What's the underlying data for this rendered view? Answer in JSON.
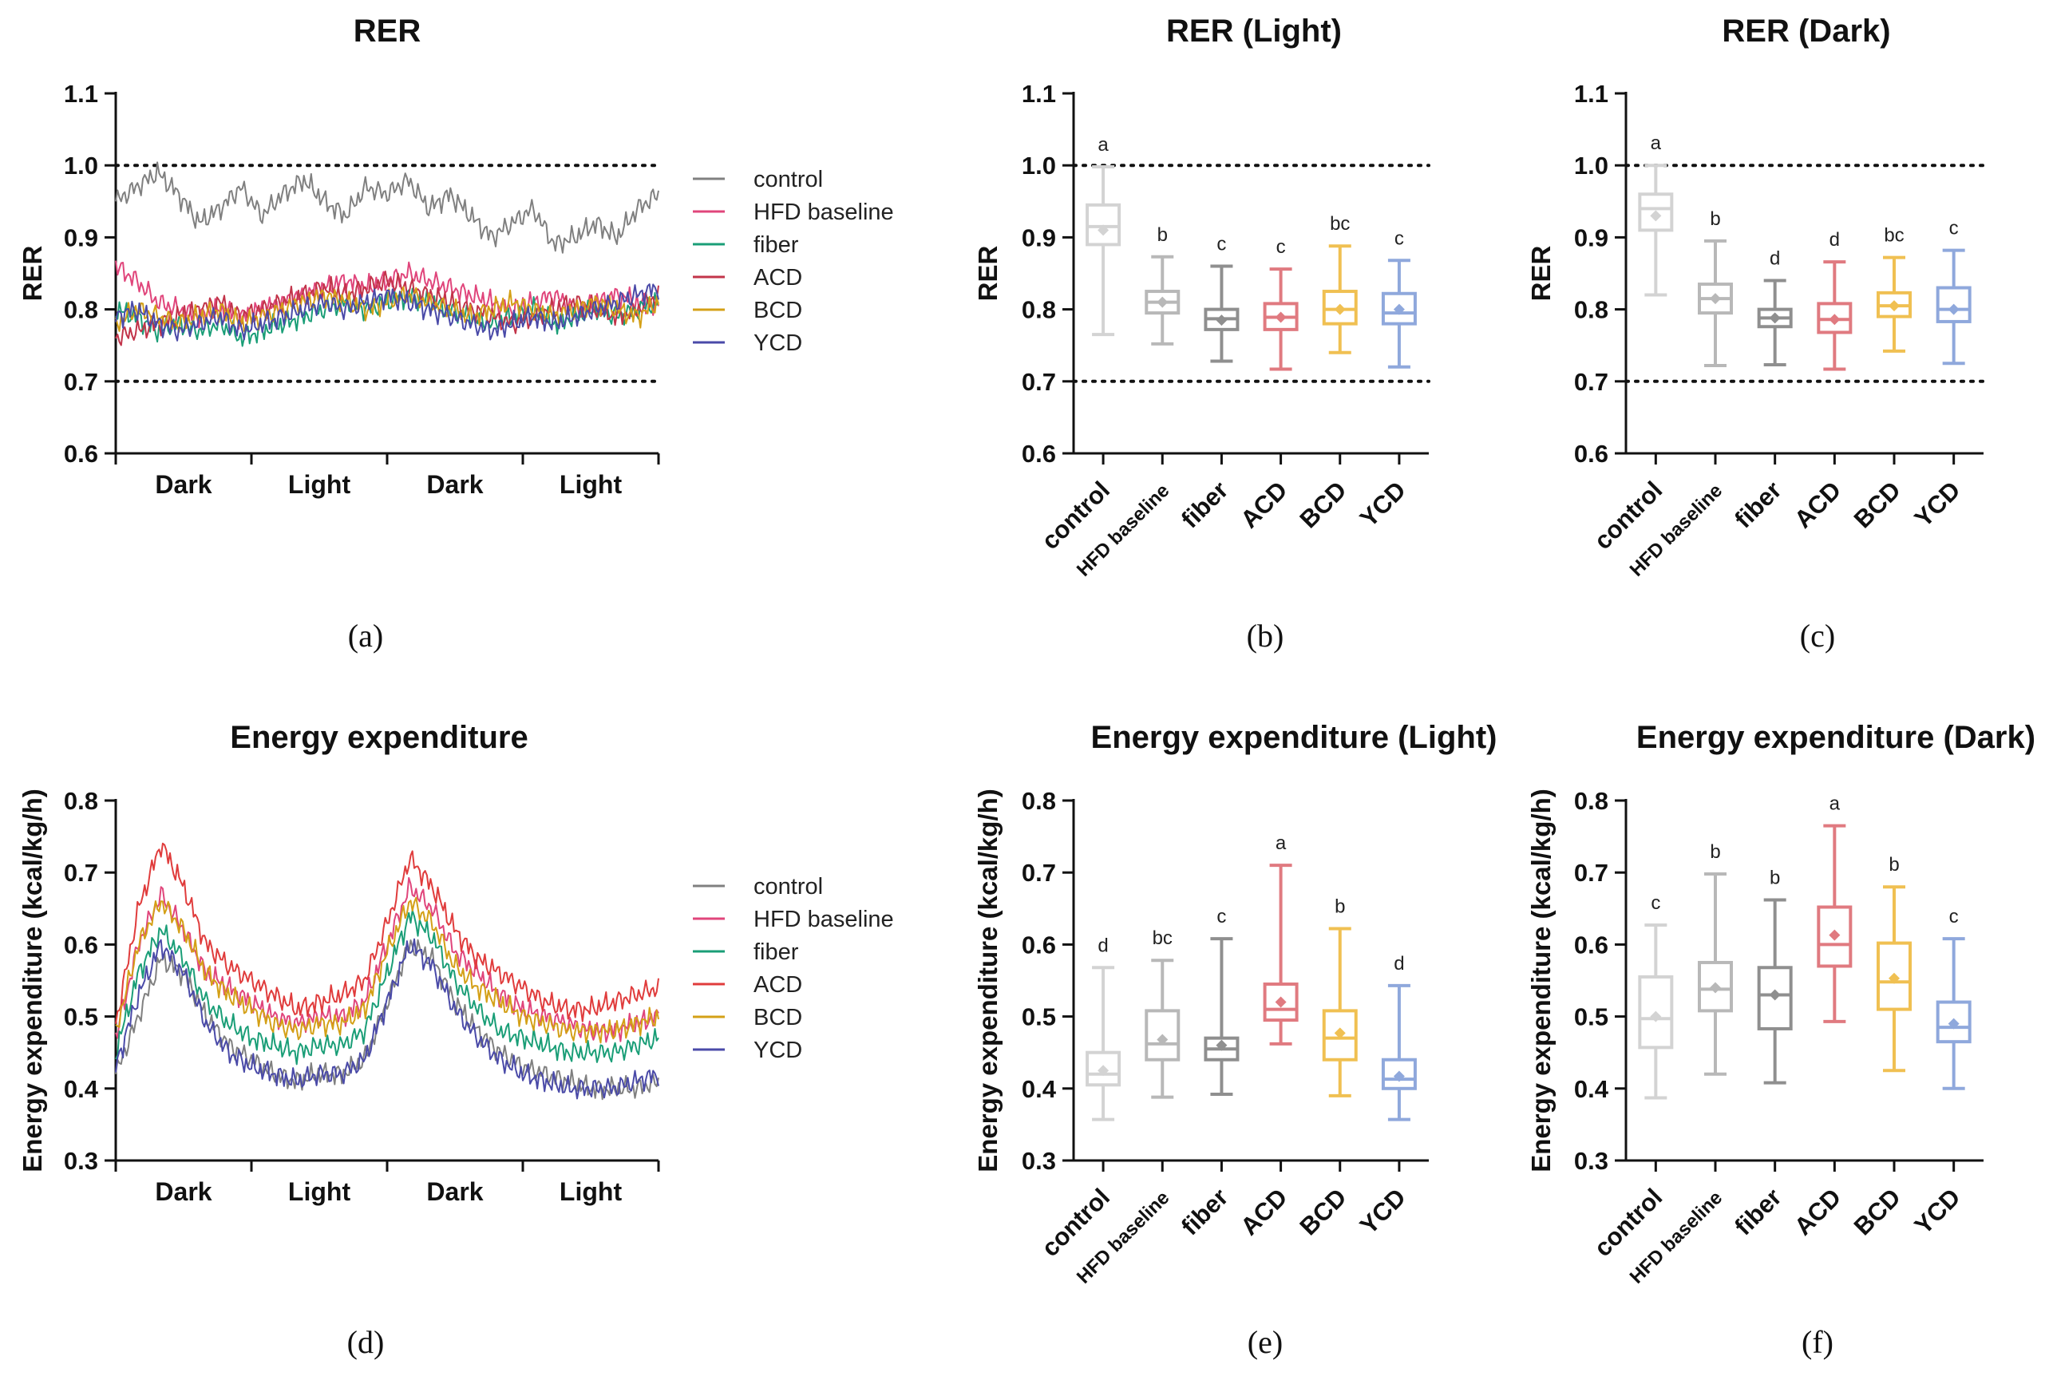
{
  "chart_data": [
    {
      "id": "a",
      "panel_label": "(a)",
      "type": "line",
      "title": "RER",
      "ylabel": "RER",
      "ylim": [
        0.6,
        1.1
      ],
      "yticks": [
        "0.6",
        "0.7",
        "0.8",
        "0.9",
        "1.0",
        "1.1"
      ],
      "xcategories": [
        "Dark",
        "Light",
        "Dark",
        "Light"
      ],
      "reference_lines": [
        0.7,
        1.0
      ],
      "legend_position": "right",
      "series": [
        {
          "name": "control",
          "color": "#808080",
          "base": [
            0.95,
            0.97,
            0.99,
            0.96,
            0.92,
            0.94,
            0.97,
            0.93,
            0.96,
            0.98,
            0.95,
            0.93,
            0.97,
            0.96,
            0.98,
            0.94,
            0.96,
            0.93,
            0.9,
            0.92,
            0.94,
            0.89,
            0.9,
            0.92,
            0.9,
            0.94,
            0.96
          ]
        },
        {
          "name": "HFD baseline",
          "color": "#e0457b",
          "base": [
            0.86,
            0.84,
            0.81,
            0.8,
            0.79,
            0.8,
            0.79,
            0.8,
            0.81,
            0.82,
            0.83,
            0.84,
            0.83,
            0.84,
            0.85,
            0.84,
            0.83,
            0.82,
            0.81,
            0.8,
            0.81,
            0.82,
            0.8,
            0.81,
            0.82,
            0.81,
            0.8
          ]
        },
        {
          "name": "fiber",
          "color": "#1a9e77",
          "base": [
            0.8,
            0.79,
            0.77,
            0.78,
            0.77,
            0.78,
            0.76,
            0.77,
            0.78,
            0.79,
            0.8,
            0.81,
            0.8,
            0.81,
            0.82,
            0.81,
            0.8,
            0.79,
            0.78,
            0.79,
            0.8,
            0.78,
            0.79,
            0.8,
            0.79,
            0.8,
            0.81
          ]
        },
        {
          "name": "ACD",
          "color": "#c2344a",
          "base": [
            0.76,
            0.77,
            0.78,
            0.79,
            0.8,
            0.81,
            0.79,
            0.8,
            0.81,
            0.82,
            0.83,
            0.82,
            0.83,
            0.84,
            0.83,
            0.82,
            0.81,
            0.8,
            0.79,
            0.78,
            0.79,
            0.8,
            0.81,
            0.8,
            0.79,
            0.8,
            0.82
          ]
        },
        {
          "name": "BCD",
          "color": "#d4a017",
          "base": [
            0.78,
            0.8,
            0.79,
            0.78,
            0.79,
            0.8,
            0.78,
            0.79,
            0.8,
            0.81,
            0.82,
            0.81,
            0.8,
            0.81,
            0.82,
            0.81,
            0.8,
            0.79,
            0.8,
            0.81,
            0.8,
            0.79,
            0.8,
            0.81,
            0.8,
            0.79,
            0.81
          ]
        },
        {
          "name": "YCD",
          "color": "#4a4aa8",
          "base": [
            0.79,
            0.8,
            0.78,
            0.77,
            0.78,
            0.79,
            0.77,
            0.78,
            0.79,
            0.8,
            0.81,
            0.8,
            0.81,
            0.82,
            0.81,
            0.8,
            0.79,
            0.78,
            0.77,
            0.78,
            0.79,
            0.78,
            0.79,
            0.8,
            0.81,
            0.82,
            0.83
          ]
        }
      ]
    },
    {
      "id": "b",
      "panel_label": "(b)",
      "type": "box",
      "title": "RER (Light)",
      "ylabel": "RER",
      "ylim": [
        0.6,
        1.1
      ],
      "yticks": [
        "0.6",
        "0.7",
        "0.8",
        "0.9",
        "1.0",
        "1.1"
      ],
      "reference_lines": [
        0.7,
        1.0
      ],
      "categories": [
        "control",
        "HFD baseline",
        "fiber",
        "ACD",
        "BCD",
        "YCD"
      ],
      "colors": [
        "#d3d3d3",
        "#b8b8b8",
        "#8f8f8f",
        "#e07a80",
        "#f0c052",
        "#8fa8dc"
      ],
      "boxes": [
        {
          "min": 0.765,
          "q1": 0.89,
          "median": 0.915,
          "q3": 0.945,
          "max": 0.998,
          "mean": 0.91,
          "letter": "a"
        },
        {
          "min": 0.752,
          "q1": 0.795,
          "median": 0.81,
          "q3": 0.825,
          "max": 0.873,
          "mean": 0.81,
          "letter": "b"
        },
        {
          "min": 0.728,
          "q1": 0.772,
          "median": 0.787,
          "q3": 0.8,
          "max": 0.86,
          "mean": 0.785,
          "letter": "c"
        },
        {
          "min": 0.717,
          "q1": 0.772,
          "median": 0.789,
          "q3": 0.808,
          "max": 0.856,
          "mean": 0.789,
          "letter": "c"
        },
        {
          "min": 0.74,
          "q1": 0.78,
          "median": 0.8,
          "q3": 0.825,
          "max": 0.888,
          "mean": 0.8,
          "letter": "bc"
        },
        {
          "min": 0.72,
          "q1": 0.78,
          "median": 0.795,
          "q3": 0.822,
          "max": 0.868,
          "mean": 0.8,
          "letter": "c"
        }
      ]
    },
    {
      "id": "c",
      "panel_label": "(c)",
      "type": "box",
      "title": "RER (Dark)",
      "ylabel": "RER",
      "ylim": [
        0.6,
        1.1
      ],
      "yticks": [
        "0.6",
        "0.7",
        "0.8",
        "0.9",
        "1.0",
        "1.1"
      ],
      "reference_lines": [
        0.7,
        1.0
      ],
      "categories": [
        "control",
        "HFD baseline",
        "fiber",
        "ACD",
        "BCD",
        "YCD"
      ],
      "colors": [
        "#d3d3d3",
        "#b8b8b8",
        "#8f8f8f",
        "#e07a80",
        "#f0c052",
        "#8fa8dc"
      ],
      "boxes": [
        {
          "min": 0.82,
          "q1": 0.91,
          "median": 0.94,
          "q3": 0.96,
          "max": 1.0,
          "mean": 0.93,
          "letter": "a"
        },
        {
          "min": 0.722,
          "q1": 0.795,
          "median": 0.815,
          "q3": 0.835,
          "max": 0.895,
          "mean": 0.815,
          "letter": "b"
        },
        {
          "min": 0.723,
          "q1": 0.776,
          "median": 0.788,
          "q3": 0.8,
          "max": 0.84,
          "mean": 0.788,
          "letter": "d"
        },
        {
          "min": 0.717,
          "q1": 0.768,
          "median": 0.786,
          "q3": 0.808,
          "max": 0.866,
          "mean": 0.786,
          "letter": "d"
        },
        {
          "min": 0.742,
          "q1": 0.79,
          "median": 0.805,
          "q3": 0.823,
          "max": 0.872,
          "mean": 0.805,
          "letter": "bc"
        },
        {
          "min": 0.725,
          "q1": 0.783,
          "median": 0.8,
          "q3": 0.83,
          "max": 0.882,
          "mean": 0.8,
          "letter": "c"
        }
      ]
    },
    {
      "id": "d",
      "panel_label": "(d)",
      "type": "line",
      "title": "Energy expenditure",
      "ylabel": "Energy expenditure (kcal/kg/h)",
      "ylim": [
        0.3,
        0.8
      ],
      "yticks": [
        "0.3",
        "0.4",
        "0.5",
        "0.6",
        "0.7",
        "0.8"
      ],
      "xcategories": [
        "Dark",
        "Light",
        "Dark",
        "Light"
      ],
      "reference_lines": [],
      "legend_position": "right",
      "series": [
        {
          "name": "control",
          "color": "#808080",
          "base": [
            0.42,
            0.5,
            0.58,
            0.56,
            0.5,
            0.46,
            0.44,
            0.42,
            0.41,
            0.42,
            0.42,
            0.44,
            0.52,
            0.6,
            0.58,
            0.52,
            0.48,
            0.45,
            0.43,
            0.42,
            0.41,
            0.4,
            0.4,
            0.4,
            0.41
          ]
        },
        {
          "name": "HFD baseline",
          "color": "#e0457b",
          "base": [
            0.47,
            0.6,
            0.67,
            0.62,
            0.56,
            0.54,
            0.52,
            0.5,
            0.49,
            0.5,
            0.5,
            0.52,
            0.6,
            0.68,
            0.65,
            0.59,
            0.56,
            0.53,
            0.51,
            0.5,
            0.49,
            0.48,
            0.48,
            0.49,
            0.5
          ]
        },
        {
          "name": "fiber",
          "color": "#1a9e77",
          "base": [
            0.45,
            0.56,
            0.62,
            0.58,
            0.52,
            0.49,
            0.47,
            0.46,
            0.45,
            0.46,
            0.46,
            0.48,
            0.56,
            0.64,
            0.61,
            0.55,
            0.51,
            0.48,
            0.47,
            0.46,
            0.45,
            0.45,
            0.45,
            0.46,
            0.47
          ]
        },
        {
          "name": "ACD",
          "color": "#e03c3c",
          "base": [
            0.49,
            0.65,
            0.74,
            0.68,
            0.6,
            0.57,
            0.55,
            0.53,
            0.51,
            0.52,
            0.53,
            0.55,
            0.63,
            0.72,
            0.68,
            0.62,
            0.58,
            0.56,
            0.54,
            0.52,
            0.51,
            0.51,
            0.52,
            0.53,
            0.54
          ]
        },
        {
          "name": "BCD",
          "color": "#d4a017",
          "base": [
            0.48,
            0.6,
            0.66,
            0.62,
            0.56,
            0.53,
            0.51,
            0.49,
            0.48,
            0.49,
            0.49,
            0.51,
            0.59,
            0.66,
            0.63,
            0.57,
            0.54,
            0.52,
            0.5,
            0.49,
            0.48,
            0.48,
            0.48,
            0.49,
            0.5
          ]
        },
        {
          "name": "YCD",
          "color": "#4a4aa8",
          "base": [
            0.43,
            0.53,
            0.6,
            0.56,
            0.49,
            0.45,
            0.43,
            0.42,
            0.41,
            0.42,
            0.42,
            0.44,
            0.52,
            0.6,
            0.57,
            0.51,
            0.47,
            0.44,
            0.42,
            0.41,
            0.4,
            0.4,
            0.4,
            0.41,
            0.42
          ]
        }
      ]
    },
    {
      "id": "e",
      "panel_label": "(e)",
      "type": "box",
      "title": "Energy expenditure (Light)",
      "ylabel": "Energy expenditure (kcal/kg/h)",
      "ylim": [
        0.3,
        0.8
      ],
      "yticks": [
        "0.3",
        "0.4",
        "0.5",
        "0.6",
        "0.7",
        "0.8"
      ],
      "reference_lines": [],
      "categories": [
        "control",
        "HFD baseline",
        "fiber",
        "ACD",
        "BCD",
        "YCD"
      ],
      "colors": [
        "#d3d3d3",
        "#b8b8b8",
        "#8f8f8f",
        "#e07a80",
        "#f0c052",
        "#8fa8dc"
      ],
      "boxes": [
        {
          "min": 0.357,
          "q1": 0.405,
          "median": 0.42,
          "q3": 0.45,
          "max": 0.568,
          "mean": 0.425,
          "letter": "d"
        },
        {
          "min": 0.388,
          "q1": 0.44,
          "median": 0.462,
          "q3": 0.508,
          "max": 0.578,
          "mean": 0.468,
          "letter": "bc"
        },
        {
          "min": 0.392,
          "q1": 0.44,
          "median": 0.455,
          "q3": 0.47,
          "max": 0.608,
          "mean": 0.46,
          "letter": "c"
        },
        {
          "min": 0.462,
          "q1": 0.495,
          "median": 0.51,
          "q3": 0.545,
          "max": 0.71,
          "mean": 0.52,
          "letter": "a"
        },
        {
          "min": 0.39,
          "q1": 0.44,
          "median": 0.47,
          "q3": 0.508,
          "max": 0.622,
          "mean": 0.477,
          "letter": "b"
        },
        {
          "min": 0.357,
          "q1": 0.4,
          "median": 0.413,
          "q3": 0.44,
          "max": 0.543,
          "mean": 0.417,
          "letter": "d"
        }
      ]
    },
    {
      "id": "f",
      "panel_label": "(f)",
      "type": "box",
      "title": "Energy expenditure (Dark)",
      "ylabel": "Energy expenditure (kcal/kg/h)",
      "ylim": [
        0.3,
        0.8
      ],
      "yticks": [
        "0.3",
        "0.4",
        "0.5",
        "0.6",
        "0.7",
        "0.8"
      ],
      "reference_lines": [],
      "categories": [
        "control",
        "HFD baseline",
        "fiber",
        "ACD",
        "BCD",
        "YCD"
      ],
      "colors": [
        "#d3d3d3",
        "#b8b8b8",
        "#8f8f8f",
        "#e07a80",
        "#f0c052",
        "#8fa8dc"
      ],
      "boxes": [
        {
          "min": 0.387,
          "q1": 0.457,
          "median": 0.497,
          "q3": 0.555,
          "max": 0.627,
          "mean": 0.5,
          "letter": "c"
        },
        {
          "min": 0.42,
          "q1": 0.508,
          "median": 0.538,
          "q3": 0.575,
          "max": 0.698,
          "mean": 0.54,
          "letter": "b"
        },
        {
          "min": 0.408,
          "q1": 0.483,
          "median": 0.53,
          "q3": 0.568,
          "max": 0.662,
          "mean": 0.53,
          "letter": "b"
        },
        {
          "min": 0.493,
          "q1": 0.57,
          "median": 0.6,
          "q3": 0.652,
          "max": 0.765,
          "mean": 0.613,
          "letter": "a"
        },
        {
          "min": 0.425,
          "q1": 0.51,
          "median": 0.548,
          "q3": 0.602,
          "max": 0.68,
          "mean": 0.553,
          "letter": "b"
        },
        {
          "min": 0.4,
          "q1": 0.465,
          "median": 0.485,
          "q3": 0.52,
          "max": 0.608,
          "mean": 0.49,
          "letter": "c"
        }
      ]
    }
  ]
}
